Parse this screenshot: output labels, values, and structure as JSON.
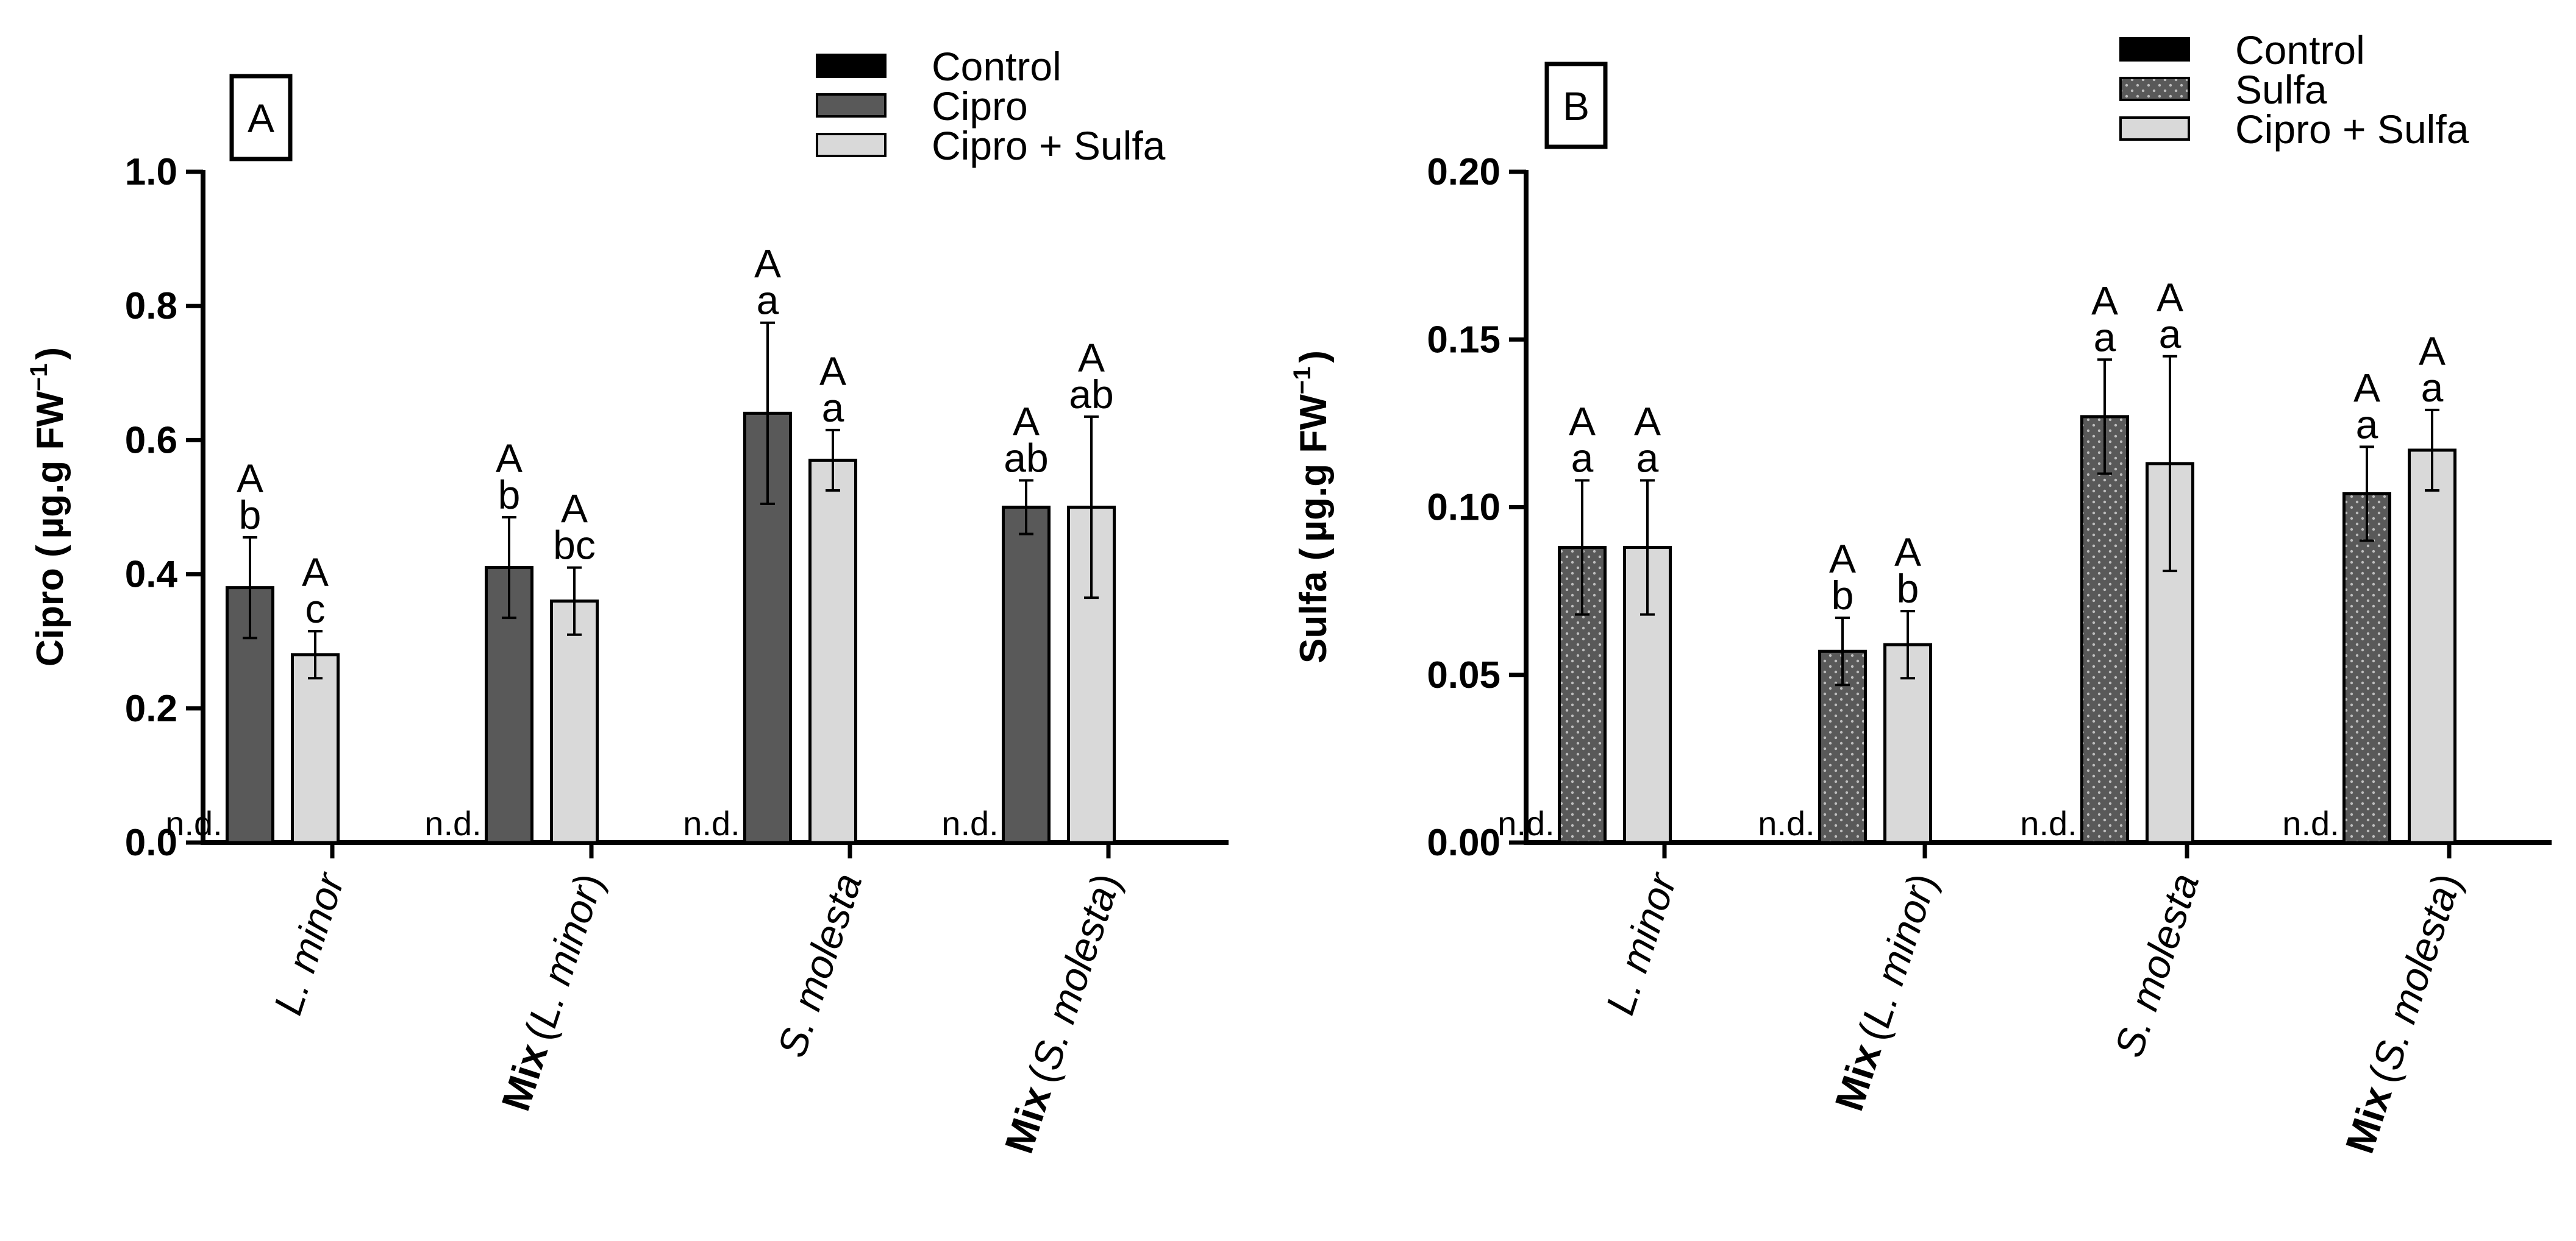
{
  "chart_data": [
    {
      "panel": "A",
      "type": "bar",
      "ylabel_main": "Cipro (",
      "ylabel_unit": "µg.g FW",
      "ylabel_exp": "−1",
      "ylabel_close": ")",
      "ylim": [
        0,
        1.0
      ],
      "yticks": [
        0.0,
        0.2,
        0.4,
        0.6,
        0.8,
        1.0
      ],
      "ytick_labels": [
        "0.0",
        "0.2",
        "0.4",
        "0.6",
        "0.8",
        "1.0"
      ],
      "categories": [
        {
          "bold": "",
          "italic": "L. minor",
          "paren": false
        },
        {
          "bold": "Mix",
          "italic": "L. minor",
          "paren": true
        },
        {
          "bold": "",
          "italic": "S. molesta",
          "paren": false
        },
        {
          "bold": "Mix",
          "italic": "S. molesta",
          "paren": true
        }
      ],
      "nd_label": "n.d.",
      "series": [
        {
          "name": "Control",
          "style": "solid-black",
          "values": [
            null,
            null,
            null,
            null
          ]
        },
        {
          "name": "Cipro",
          "style": "dark-gray",
          "values": [
            0.38,
            0.41,
            0.64,
            0.5
          ],
          "errors": [
            0.075,
            0.075,
            0.135,
            0.04
          ],
          "upper_letters": [
            "A",
            "A",
            "A",
            "A"
          ],
          "lower_letters": [
            "b",
            "b",
            "a",
            "ab"
          ]
        },
        {
          "name": "Cipro + Sulfa",
          "style": "light-gray",
          "values": [
            0.28,
            0.36,
            0.57,
            0.5
          ],
          "errors": [
            0.035,
            0.05,
            0.045,
            0.135
          ],
          "upper_letters": [
            "A",
            "A",
            "A",
            "A"
          ],
          "lower_letters": [
            "c",
            "bc",
            "a",
            "ab"
          ]
        }
      ]
    },
    {
      "panel": "B",
      "type": "bar",
      "ylabel_main": "Sulfa (",
      "ylabel_unit": "µg.g FW",
      "ylabel_exp": "−1",
      "ylabel_close": ")",
      "ylim": [
        0,
        0.2
      ],
      "yticks": [
        0.0,
        0.05,
        0.1,
        0.15,
        0.2
      ],
      "ytick_labels": [
        "0.00",
        "0.05",
        "0.10",
        "0.15",
        "0.20"
      ],
      "categories": [
        {
          "bold": "",
          "italic": "L. minor",
          "paren": false
        },
        {
          "bold": "Mix",
          "italic": "L. minor",
          "paren": true
        },
        {
          "bold": "",
          "italic": "S. molesta",
          "paren": false
        },
        {
          "bold": "Mix",
          "italic": "S. molesta",
          "paren": true
        }
      ],
      "nd_label": "n.d.",
      "series": [
        {
          "name": "Control",
          "style": "solid-black",
          "values": [
            null,
            null,
            null,
            null
          ]
        },
        {
          "name": "Sulfa",
          "style": "dotted-dark",
          "values": [
            0.088,
            0.057,
            0.127,
            0.104
          ],
          "errors": [
            0.02,
            0.01,
            0.017,
            0.014
          ],
          "upper_letters": [
            "A",
            "A",
            "A",
            "A"
          ],
          "lower_letters": [
            "a",
            "b",
            "a",
            "a"
          ]
        },
        {
          "name": "Cipro + Sulfa",
          "style": "light-gray",
          "values": [
            0.088,
            0.059,
            0.113,
            0.117
          ],
          "errors": [
            0.02,
            0.01,
            0.032,
            0.012
          ],
          "upper_letters": [
            "A",
            "A",
            "A",
            "A"
          ],
          "lower_letters": [
            "a",
            "b",
            "a",
            "a"
          ]
        }
      ]
    }
  ],
  "colors": {
    "control": "#000000",
    "dark_bar": "#595959",
    "light_bar": "#d9d9d9",
    "dot": "#bfbfbf"
  }
}
